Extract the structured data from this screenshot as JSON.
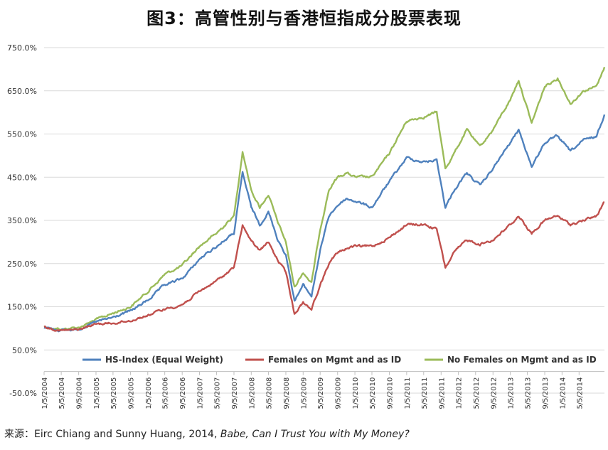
{
  "title": "图3：高管性别与香港恒指成分股票表现",
  "source": {
    "prefix": "来源：Eirc Chiang and Sunny Huang, 2014, ",
    "work": "Babe, Can I Trust You with My Money?"
  },
  "chart_data": {
    "type": "line",
    "title": "图3：高管性别与香港恒指成分股票表现",
    "xlabel": "",
    "ylabel": "",
    "x_range": [
      "1/5/2004",
      "10/31/2014"
    ],
    "ylim": [
      -50,
      750
    ],
    "y_ticks": [
      "-50.0%",
      "50.0%",
      "150.0%",
      "250.0%",
      "350.0%",
      "450.0%",
      "550.0%",
      "650.0%",
      "750.0%"
    ],
    "y_tick_values": [
      -50,
      50,
      150,
      250,
      350,
      450,
      550,
      650,
      750
    ],
    "x_ticks": [
      "1/5/2004",
      "5/5/2004",
      "9/5/2004",
      "1/5/2005",
      "5/5/2005",
      "9/5/2005",
      "1/5/2006",
      "5/5/2006",
      "9/5/2006",
      "1/5/2007",
      "5/5/2007",
      "9/5/2007",
      "1/5/2008",
      "5/5/2008",
      "9/5/2008",
      "1/5/2009",
      "5/5/2009",
      "9/5/2009",
      "1/5/2010",
      "5/5/2010",
      "9/5/2010",
      "1/5/2011",
      "5/5/2011",
      "9/5/2011",
      "1/5/2012",
      "5/5/2012",
      "9/5/2012",
      "1/5/2013",
      "5/5/2013",
      "9/5/2013",
      "1/5/2014",
      "5/5/2014"
    ],
    "grid": "horizontal",
    "legend_position": "bottom",
    "series": [
      {
        "name": "HS-Index (Equal Weight)",
        "color": "#4f81bd",
        "points": [
          [
            "1/5/2004",
            103
          ],
          [
            "5/5/2004",
            95
          ],
          [
            "9/5/2004",
            98
          ],
          [
            "1/5/2005",
            115
          ],
          [
            "5/5/2005",
            125
          ],
          [
            "9/5/2005",
            140
          ],
          [
            "1/5/2006",
            165
          ],
          [
            "5/5/2006",
            200
          ],
          [
            "9/5/2006",
            215
          ],
          [
            "1/5/2007",
            260
          ],
          [
            "5/5/2007",
            290
          ],
          [
            "9/5/2007",
            320
          ],
          [
            "11/5/2007",
            460
          ],
          [
            "1/5/2008",
            380
          ],
          [
            "3/5/2008",
            340
          ],
          [
            "5/5/2008",
            370
          ],
          [
            "7/5/2008",
            310
          ],
          [
            "9/5/2008",
            270
          ],
          [
            "11/5/2008",
            165
          ],
          [
            "1/5/2009",
            200
          ],
          [
            "3/5/2009",
            175
          ],
          [
            "5/5/2009",
            280
          ],
          [
            "7/5/2009",
            360
          ],
          [
            "9/5/2009",
            385
          ],
          [
            "11/5/2009",
            400
          ],
          [
            "1/5/2010",
            395
          ],
          [
            "5/5/2010",
            380
          ],
          [
            "9/5/2010",
            440
          ],
          [
            "1/5/2011",
            495
          ],
          [
            "5/5/2011",
            485
          ],
          [
            "8/5/2011",
            490
          ],
          [
            "10/5/2011",
            380
          ],
          [
            "12/5/2011",
            420
          ],
          [
            "3/5/2012",
            460
          ],
          [
            "6/5/2012",
            430
          ],
          [
            "9/5/2012",
            470
          ],
          [
            "1/5/2013",
            530
          ],
          [
            "3/5/2013",
            560
          ],
          [
            "6/5/2013",
            475
          ],
          [
            "9/5/2013",
            530
          ],
          [
            "12/5/2013",
            545
          ],
          [
            "3/5/2014",
            510
          ],
          [
            "6/5/2014",
            535
          ],
          [
            "9/5/2014",
            545
          ],
          [
            "10/31/2014",
            595
          ]
        ]
      },
      {
        "name": "Females on Mgmt and as ID",
        "color": "#c0504d",
        "points": [
          [
            "1/5/2004",
            103
          ],
          [
            "5/5/2004",
            95
          ],
          [
            "9/5/2004",
            97
          ],
          [
            "1/5/2005",
            110
          ],
          [
            "5/5/2005",
            112
          ],
          [
            "9/5/2005",
            118
          ],
          [
            "1/5/2006",
            130
          ],
          [
            "5/5/2006",
            145
          ],
          [
            "9/5/2006",
            155
          ],
          [
            "1/5/2007",
            185
          ],
          [
            "5/5/2007",
            210
          ],
          [
            "9/5/2007",
            240
          ],
          [
            "11/5/2007",
            340
          ],
          [
            "1/5/2008",
            300
          ],
          [
            "3/5/2008",
            280
          ],
          [
            "5/5/2008",
            300
          ],
          [
            "7/5/2008",
            260
          ],
          [
            "9/5/2008",
            230
          ],
          [
            "11/5/2008",
            135
          ],
          [
            "1/5/2009",
            160
          ],
          [
            "3/5/2009",
            145
          ],
          [
            "5/5/2009",
            200
          ],
          [
            "7/5/2009",
            250
          ],
          [
            "9/5/2009",
            275
          ],
          [
            "11/5/2009",
            285
          ],
          [
            "1/5/2010",
            290
          ],
          [
            "5/5/2010",
            290
          ],
          [
            "9/5/2010",
            310
          ],
          [
            "1/5/2011",
            340
          ],
          [
            "5/5/2011",
            340
          ],
          [
            "8/5/2011",
            330
          ],
          [
            "10/5/2011",
            240
          ],
          [
            "12/5/2011",
            275
          ],
          [
            "3/5/2012",
            305
          ],
          [
            "6/5/2012",
            295
          ],
          [
            "9/5/2012",
            305
          ],
          [
            "1/5/2013",
            340
          ],
          [
            "3/5/2013",
            360
          ],
          [
            "6/5/2013",
            320
          ],
          [
            "9/5/2013",
            350
          ],
          [
            "12/5/2013",
            360
          ],
          [
            "3/5/2014",
            340
          ],
          [
            "6/5/2014",
            350
          ],
          [
            "9/5/2014",
            360
          ],
          [
            "10/31/2014",
            392
          ]
        ]
      },
      {
        "name": "No Females on Mgmt and as ID",
        "color": "#9bbb59",
        "points": [
          [
            "1/5/2004",
            103
          ],
          [
            "5/5/2004",
            98
          ],
          [
            "9/5/2004",
            102
          ],
          [
            "1/5/2005",
            120
          ],
          [
            "5/5/2005",
            135
          ],
          [
            "9/5/2005",
            150
          ],
          [
            "1/5/2006",
            185
          ],
          [
            "5/5/2006",
            225
          ],
          [
            "9/5/2006",
            245
          ],
          [
            "1/5/2007",
            290
          ],
          [
            "5/5/2007",
            320
          ],
          [
            "9/5/2007",
            360
          ],
          [
            "11/5/2007",
            510
          ],
          [
            "1/5/2008",
            420
          ],
          [
            "3/5/2008",
            380
          ],
          [
            "5/5/2008",
            410
          ],
          [
            "7/5/2008",
            350
          ],
          [
            "9/5/2008",
            300
          ],
          [
            "11/5/2008",
            195
          ],
          [
            "1/5/2009",
            230
          ],
          [
            "3/5/2009",
            205
          ],
          [
            "5/5/2009",
            330
          ],
          [
            "7/5/2009",
            420
          ],
          [
            "9/5/2009",
            450
          ],
          [
            "11/5/2009",
            460
          ],
          [
            "1/5/2010",
            450
          ],
          [
            "5/5/2010",
            450
          ],
          [
            "9/5/2010",
            505
          ],
          [
            "1/5/2011",
            580
          ],
          [
            "5/5/2011",
            590
          ],
          [
            "8/5/2011",
            600
          ],
          [
            "10/5/2011",
            470
          ],
          [
            "12/5/2011",
            505
          ],
          [
            "3/5/2012",
            560
          ],
          [
            "6/5/2012",
            520
          ],
          [
            "9/5/2012",
            560
          ],
          [
            "1/5/2013",
            630
          ],
          [
            "3/5/2013",
            675
          ],
          [
            "6/5/2013",
            575
          ],
          [
            "9/5/2013",
            660
          ],
          [
            "12/5/2013",
            680
          ],
          [
            "3/5/2014",
            620
          ],
          [
            "6/5/2014",
            650
          ],
          [
            "9/5/2014",
            660
          ],
          [
            "10/31/2014",
            705
          ]
        ]
      }
    ]
  }
}
